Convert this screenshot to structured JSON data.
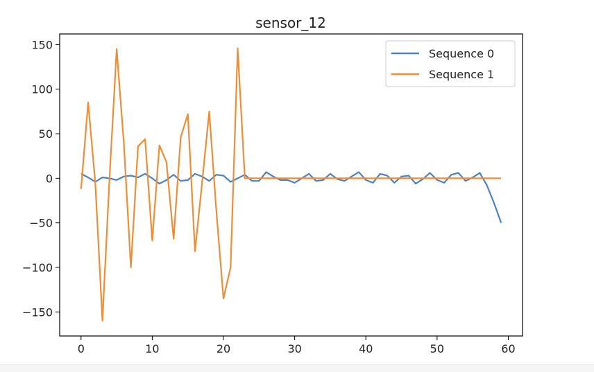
{
  "chart_data": {
    "type": "line",
    "title": "sensor_12",
    "xlabel": "",
    "ylabel": "",
    "xlim": [
      -3,
      62
    ],
    "ylim": [
      -177,
      162
    ],
    "xticks": [
      0,
      10,
      20,
      30,
      40,
      50,
      60
    ],
    "yticks": [
      -150,
      -100,
      -50,
      0,
      50,
      100,
      150
    ],
    "xtick_labels": [
      "0",
      "10",
      "20",
      "30",
      "40",
      "50",
      "60"
    ],
    "ytick_labels": [
      "−150",
      "−100",
      "−50",
      "0",
      "50",
      "100",
      "150"
    ],
    "grid": false,
    "legend_position": "top-right",
    "series": [
      {
        "name": "Sequence 0",
        "color": "#4c82c0",
        "x": [
          0,
          1,
          2,
          3,
          4,
          5,
          6,
          7,
          8,
          9,
          10,
          11,
          12,
          13,
          14,
          15,
          16,
          17,
          18,
          19,
          20,
          21,
          22,
          23,
          24,
          25,
          26,
          27,
          28,
          29,
          30,
          31,
          32,
          33,
          34,
          35,
          36,
          37,
          38,
          39,
          40,
          41,
          42,
          43,
          44,
          45,
          46,
          47,
          48,
          49,
          50,
          51,
          52,
          53,
          54,
          55,
          56,
          57,
          58,
          59
        ],
        "y": [
          5,
          1,
          -4,
          1,
          0,
          -2,
          2,
          3,
          1,
          5,
          0,
          -6,
          -2,
          4,
          -3,
          -2,
          5,
          2,
          -3,
          4,
          3,
          -4,
          0,
          4,
          -3,
          -3,
          7,
          2,
          -2,
          -2,
          -5,
          0,
          5,
          -3,
          -2,
          5,
          -1,
          -3,
          2,
          7,
          -2,
          -5,
          5,
          3,
          -5,
          2,
          3,
          -6,
          -1,
          6,
          -2,
          -5,
          4,
          6,
          -3,
          1,
          6,
          -8,
          -28,
          -50
        ]
      },
      {
        "name": "Sequence 1",
        "color": "#f08c35",
        "x": [
          0,
          1,
          2,
          3,
          4,
          5,
          6,
          7,
          8,
          9,
          10,
          11,
          12,
          13,
          14,
          15,
          16,
          17,
          18,
          19,
          20,
          21,
          22,
          23,
          24,
          25,
          26,
          27,
          28,
          29,
          30,
          31,
          32,
          33,
          34,
          35,
          36,
          37,
          38,
          39,
          40,
          41,
          42,
          43,
          44,
          45,
          46,
          47,
          48,
          49,
          50,
          51,
          52,
          53,
          54,
          55,
          56,
          57,
          58,
          59
        ],
        "y": [
          -12,
          85,
          -5,
          -160,
          0,
          145,
          40,
          -100,
          36,
          44,
          -70,
          37,
          18,
          -68,
          46,
          72,
          -82,
          -5,
          75,
          -37,
          -135,
          -100,
          146,
          0,
          0,
          0,
          0,
          0,
          0,
          0,
          0,
          0,
          0,
          0,
          0,
          0,
          0,
          0,
          0,
          0,
          0,
          0,
          0,
          0,
          0,
          0,
          0,
          0,
          0,
          0,
          0,
          0,
          0,
          0,
          0,
          0,
          0,
          0,
          0,
          0
        ]
      }
    ]
  }
}
